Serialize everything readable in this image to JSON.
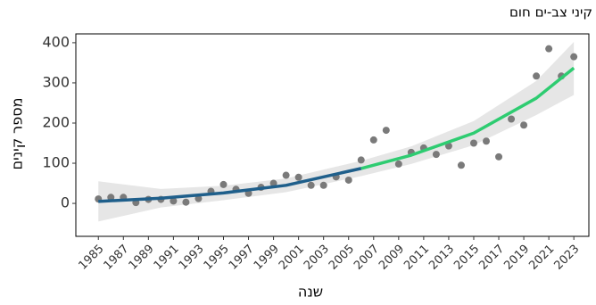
{
  "chart_data": {
    "type": "scatter",
    "title": "קיני צב-ים חום",
    "x_label": "שנה",
    "y_label": "מספר קינים",
    "x": [
      1985,
      1986,
      1987,
      1988,
      1989,
      1990,
      1991,
      1992,
      1993,
      1994,
      1995,
      1996,
      1997,
      1998,
      1999,
      2000,
      2001,
      2002,
      2003,
      2004,
      2005,
      2006,
      2007,
      2008,
      2009,
      2010,
      2011,
      2012,
      2013,
      2014,
      2015,
      2016,
      2017,
      2018,
      2019,
      2020,
      2021,
      2022,
      2023
    ],
    "values": [
      11,
      15,
      15,
      2,
      10,
      10,
      6,
      3,
      12,
      30,
      47,
      35,
      25,
      40,
      50,
      70,
      65,
      45,
      45,
      66,
      58,
      108,
      158,
      182,
      98,
      127,
      138,
      122,
      143,
      95,
      150,
      155,
      116,
      210,
      195,
      317,
      385,
      317,
      365
    ],
    "point_color": "#7a7a7a",
    "trend": [
      {
        "color": "#1f5f8b",
        "x": [
          1985,
          1990,
          1995,
          2000,
          2006
        ],
        "values": [
          5,
          13,
          26,
          45,
          87
        ]
      },
      {
        "color": "#2ecc71",
        "x": [
          2006,
          2010,
          2015,
          2020,
          2023
        ],
        "values": [
          87,
          120,
          175,
          262,
          337
        ]
      }
    ],
    "band": {
      "color": "#e6e6e6",
      "x": [
        1985,
        1990,
        1995,
        2000,
        2006,
        2010,
        2015,
        2020,
        2023
      ],
      "lower": [
        -45,
        -10,
        8,
        28,
        68,
        98,
        145,
        220,
        270
      ],
      "upper": [
        55,
        36,
        44,
        62,
        106,
        142,
        205,
        305,
        402
      ]
    },
    "xlim": [
      1983.2,
      2024.2
    ],
    "ylim": [
      -82,
      422
    ],
    "xticks": [
      1985,
      1987,
      1989,
      1991,
      1993,
      1995,
      1997,
      1999,
      2001,
      2003,
      2005,
      2007,
      2009,
      2011,
      2013,
      2015,
      2017,
      2019,
      2021,
      2023
    ],
    "yticks": [
      0,
      100,
      200,
      300,
      400
    ]
  }
}
